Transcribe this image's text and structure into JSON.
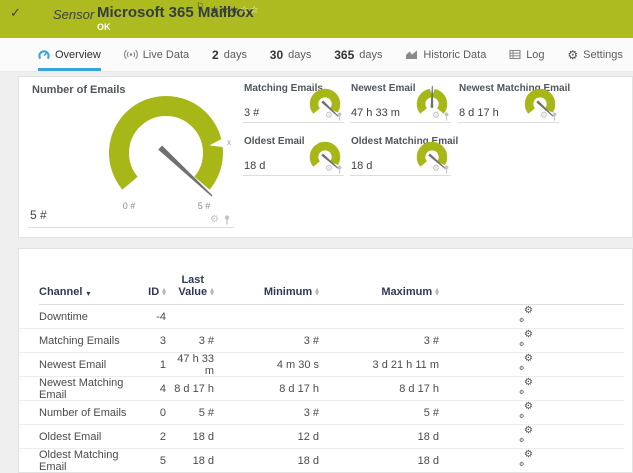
{
  "header": {
    "check": "✓",
    "kind": "Sensor",
    "title": "Microsoft 365 Mailbox",
    "flag": "⚐",
    "stars_filled": "★★★",
    "stars_empty": "☆☆",
    "status": "OK"
  },
  "tabs": {
    "items": [
      {
        "label": "Overview",
        "active": true
      },
      {
        "label": "Live Data"
      },
      {
        "num": "2",
        "label": "days"
      },
      {
        "num": "30",
        "label": "days"
      },
      {
        "num": "365",
        "label": "days"
      },
      {
        "label": "Historic Data"
      },
      {
        "label": "Log"
      },
      {
        "label": "Settings"
      }
    ]
  },
  "overview": {
    "main_gauge": {
      "title": "Number of Emails",
      "value": "5 #",
      "scale_min": "0 #",
      "scale_max": "5 #",
      "needle_angle": 133,
      "marker_angle": 80,
      "marker_label": "x"
    },
    "panels": [
      {
        "title": "Matching Emails",
        "value": "3 #",
        "needle_angle": 133
      },
      {
        "title": "Newest Email",
        "value": "47 h 33 m",
        "needle_angle": 1
      },
      {
        "title": "Newest Matching Email",
        "value": "8 d 17 h",
        "needle_angle": 133
      },
      {
        "title": "Oldest Email",
        "value": "18 d",
        "needle_angle": 131
      },
      {
        "title": "Oldest Matching Email",
        "value": "18 d",
        "needle_angle": 131
      }
    ]
  },
  "table": {
    "headers": {
      "channel": "Channel",
      "id": "ID",
      "last_1": "Last",
      "last_2": "Value",
      "min": "Minimum",
      "max": "Maximum"
    },
    "rows": [
      {
        "channel": "Downtime",
        "id": "-4",
        "last": "",
        "min": "",
        "max": ""
      },
      {
        "channel": "Matching Emails",
        "id": "3",
        "last": "3 #",
        "min": "3 #",
        "max": "3 #"
      },
      {
        "channel": "Newest Email",
        "id": "1",
        "last": "47 h 33 m",
        "min": "4 m 30 s",
        "max": "3 d 21 h 11 m"
      },
      {
        "channel": "Newest Matching Email",
        "id": "4",
        "last": "8 d 17 h",
        "min": "8 d 17 h",
        "max": "8 d 17 h"
      },
      {
        "channel": "Number of Emails",
        "id": "0",
        "last": "5 #",
        "min": "3 #",
        "max": "5 #"
      },
      {
        "channel": "Oldest Email",
        "id": "2",
        "last": "18 d",
        "min": "12 d",
        "max": "18 d"
      },
      {
        "channel": "Oldest Matching Email",
        "id": "5",
        "last": "18 d",
        "min": "18 d",
        "max": "18 d"
      }
    ]
  },
  "colors": {
    "status_green": "#adbb21",
    "gauge_green": "#a7b717",
    "accent_blue": "#3aa4d8",
    "header_navy": "#2e3a55"
  }
}
